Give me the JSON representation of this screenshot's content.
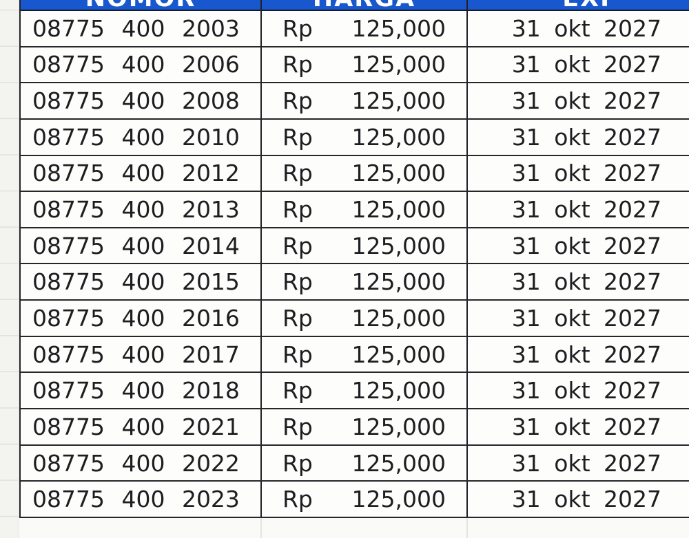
{
  "header": {
    "columns": [
      "NOMOR",
      "HARGA",
      "EXP"
    ],
    "accent_color": "#1857cd",
    "text_color": "#ffffff"
  },
  "table": {
    "rows": [
      {
        "nomor": "08775 400 2003",
        "currency": "Rp",
        "amount": "125,000",
        "exp": "31 okt 2027"
      },
      {
        "nomor": "08775 400 2006",
        "currency": "Rp",
        "amount": "125,000",
        "exp": "31 okt 2027"
      },
      {
        "nomor": "08775 400 2008",
        "currency": "Rp",
        "amount": "125,000",
        "exp": "31 okt 2027"
      },
      {
        "nomor": "08775 400 2010",
        "currency": "Rp",
        "amount": "125,000",
        "exp": "31 okt 2027"
      },
      {
        "nomor": "08775 400 2012",
        "currency": "Rp",
        "amount": "125,000",
        "exp": "31 okt 2027"
      },
      {
        "nomor": "08775 400 2013",
        "currency": "Rp",
        "amount": "125,000",
        "exp": "31 okt 2027"
      },
      {
        "nomor": "08775 400 2014",
        "currency": "Rp",
        "amount": "125,000",
        "exp": "31 okt 2027"
      },
      {
        "nomor": "08775 400 2015",
        "currency": "Rp",
        "amount": "125,000",
        "exp": "31 okt 2027"
      },
      {
        "nomor": "08775 400 2016",
        "currency": "Rp",
        "amount": "125,000",
        "exp": "31 okt 2027"
      },
      {
        "nomor": "08775 400 2017",
        "currency": "Rp",
        "amount": "125,000",
        "exp": "31 okt 2027"
      },
      {
        "nomor": "08775 400 2018",
        "currency": "Rp",
        "amount": "125,000",
        "exp": "31 okt 2027"
      },
      {
        "nomor": "08775 400 2021",
        "currency": "Rp",
        "amount": "125,000",
        "exp": "31 okt 2027"
      },
      {
        "nomor": "08775 400 2022",
        "currency": "Rp",
        "amount": "125,000",
        "exp": "31 okt 2027"
      },
      {
        "nomor": "08775 400 2023",
        "currency": "Rp",
        "amount": "125,000",
        "exp": "31 okt 2027"
      }
    ]
  },
  "colors": {
    "grid_dark": "#26262b",
    "cell_bg": "#fdfdfb",
    "margin_strip_bg": "#f3f3f0"
  }
}
